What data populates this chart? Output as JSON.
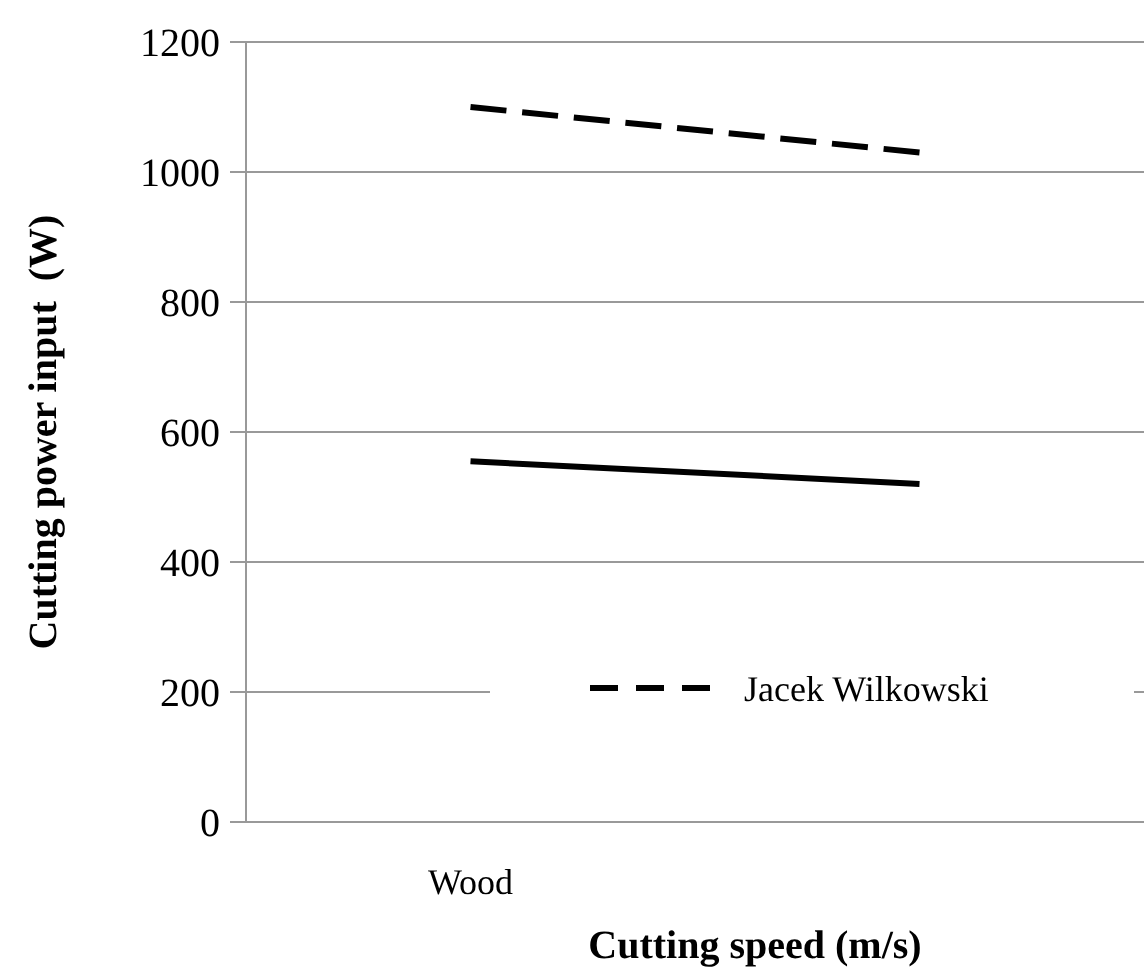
{
  "chart_data": {
    "type": "line",
    "xlabel": "Cutting speed (m/s)",
    "ylabel": "Cutting power input  (W)",
    "categories": [
      "Wood",
      null
    ],
    "series": [
      {
        "name": "Jacek Wilkowski",
        "color": "#000000",
        "values": [
          1100,
          1030
        ],
        "line_style": "dashed"
      },
      {
        "color": "#000000",
        "values": [
          555,
          520
        ],
        "line_style": "solid"
      }
    ],
    "ylim": [
      0,
      1200
    ],
    "yticks": [
      0,
      200,
      400,
      600,
      800,
      1000,
      1200
    ],
    "grid": "y",
    "legend": "bottom right",
    "marker": "none"
  }
}
